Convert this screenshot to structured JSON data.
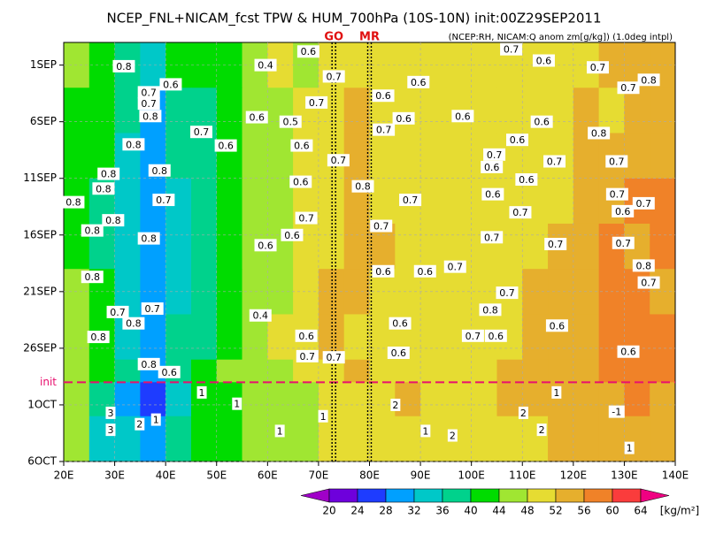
{
  "chart_data": {
    "type": "hovmoller",
    "title": "NCEP_FNL+NICAM_fcst TPW & HUM_700hPa (10S-10N) init:00Z29SEP2011",
    "subtitle": "(NCEP:RH, NICAM:Q anom zm[g/kg]) (1.0deg intpl)",
    "xlim": [
      20,
      140
    ],
    "xticks": [
      {
        "value": 20,
        "label": "20E"
      },
      {
        "value": 30,
        "label": "30E"
      },
      {
        "value": 40,
        "label": "40E"
      },
      {
        "value": 50,
        "label": "50E"
      },
      {
        "value": 60,
        "label": "60E"
      },
      {
        "value": 70,
        "label": "70E"
      },
      {
        "value": 80,
        "label": "80E"
      },
      {
        "value": 90,
        "label": "90E"
      },
      {
        "value": 100,
        "label": "100E"
      },
      {
        "value": 110,
        "label": "110E"
      },
      {
        "value": 120,
        "label": "120E"
      },
      {
        "value": 130,
        "label": "130E"
      },
      {
        "value": 140,
        "label": "140E"
      }
    ],
    "ylim": [
      36,
      -1
    ],
    "yticks": [
      {
        "value": 1,
        "label": "1SEP"
      },
      {
        "value": 6,
        "label": "6SEP"
      },
      {
        "value": 11,
        "label": "11SEP"
      },
      {
        "value": 16,
        "label": "16SEP"
      },
      {
        "value": 21,
        "label": "21SEP"
      },
      {
        "value": 26,
        "label": "26SEP"
      },
      {
        "value": 31,
        "label": "1OCT"
      },
      {
        "value": 36,
        "label": "6OCT"
      }
    ],
    "init_line": {
      "label": "init",
      "value": 29,
      "color": "#e8106e"
    },
    "markers": [
      {
        "label": "GO",
        "lon": 73,
        "color": "#e01010"
      },
      {
        "label": "MR",
        "lon": 80,
        "color": "#e01010"
      }
    ],
    "colorbar": {
      "levels": [
        20,
        24,
        28,
        32,
        36,
        40,
        44,
        48,
        52,
        56,
        60,
        64
      ],
      "colors": [
        "#a000c8",
        "#6e00dc",
        "#1e3cff",
        "#00a0ff",
        "#00c8c8",
        "#00d28c",
        "#00dc00",
        "#a0e632",
        "#e6dc32",
        "#e6af2d",
        "#f08228",
        "#fa3c3c",
        "#f00082"
      ],
      "unit": "[kg/m²]"
    },
    "field": {
      "x_edges": [
        20,
        25,
        30,
        35,
        40,
        45,
        50,
        55,
        60,
        65,
        70,
        75,
        80,
        85,
        90,
        95,
        100,
        105,
        110,
        115,
        120,
        125,
        130,
        135,
        140
      ],
      "y_edges": [
        -1,
        3,
        7,
        11,
        15,
        19,
        23,
        27,
        29,
        32,
        36
      ],
      "values": [
        [
          45,
          41,
          37,
          33,
          40,
          42,
          43,
          46,
          49,
          47,
          50,
          50,
          50,
          48,
          50,
          49,
          49,
          50,
          48,
          50,
          51,
          52,
          53,
          54
        ],
        [
          42,
          40,
          36,
          30,
          37,
          39,
          41,
          45,
          47,
          49,
          50,
          52,
          50,
          51,
          50,
          50,
          48,
          49,
          48,
          51,
          52,
          50,
          52,
          54
        ],
        [
          43,
          40,
          35,
          29,
          36,
          38,
          42,
          44,
          46,
          49,
          51,
          52,
          50,
          49,
          50,
          51,
          49,
          50,
          50,
          50,
          52,
          53,
          54,
          55
        ],
        [
          40,
          38,
          34,
          30,
          35,
          37,
          40,
          44,
          47,
          48,
          50,
          52,
          51,
          50,
          50,
          49,
          48,
          50,
          51,
          51,
          53,
          54,
          56,
          57
        ],
        [
          42,
          38,
          33,
          29,
          34,
          36,
          41,
          45,
          47,
          50,
          51,
          52,
          52,
          50,
          49,
          50,
          50,
          51,
          51,
          52,
          54,
          56,
          55,
          56
        ],
        [
          44,
          40,
          34,
          30,
          35,
          37,
          41,
          45,
          47,
          50,
          52,
          52,
          50,
          51,
          50,
          48,
          48,
          50,
          52,
          53,
          55,
          57,
          56,
          55
        ],
        [
          46,
          42,
          35,
          30,
          36,
          39,
          42,
          44,
          48,
          50,
          52,
          51,
          51,
          50,
          50,
          49,
          50,
          51,
          53,
          54,
          55,
          56,
          57,
          58
        ],
        [
          46,
          43,
          36,
          30,
          37,
          40,
          44,
          45,
          47,
          49,
          51,
          52,
          51,
          50,
          50,
          50,
          51,
          52,
          53,
          54,
          55,
          56,
          56,
          57
        ],
        [
          44,
          36,
          31,
          27,
          35,
          40,
          41,
          46,
          46,
          47,
          48,
          49,
          50,
          52,
          50,
          48,
          50,
          52,
          53,
          54,
          55,
          53,
          56,
          55
        ],
        [
          44,
          35,
          33,
          29,
          38,
          41,
          42,
          45,
          45,
          47,
          49,
          50,
          50,
          51,
          49,
          50,
          50,
          51,
          51,
          53,
          55,
          54,
          54,
          52
        ]
      ]
    },
    "contour_labels": [
      {
        "label": "0.8",
        "x": 31.8,
        "y": 1.1
      },
      {
        "label": "0.4",
        "x": 59.6,
        "y": 1
      },
      {
        "label": "0.6",
        "x": 68,
        "y": -0.2
      },
      {
        "label": "0.7",
        "x": 73,
        "y": 2
      },
      {
        "label": "0.7",
        "x": 107.8,
        "y": -0.4
      },
      {
        "label": "0.6",
        "x": 114.2,
        "y": 0.6
      },
      {
        "label": "0.7",
        "x": 124.8,
        "y": 1.2
      },
      {
        "label": "0.8",
        "x": 134.8,
        "y": 2.3
      },
      {
        "label": "0.7",
        "x": 130.8,
        "y": 3
      },
      {
        "label": "0.6",
        "x": 41,
        "y": 2.7
      },
      {
        "label": "0.7",
        "x": 36.7,
        "y": 3.4
      },
      {
        "label": "0.7",
        "x": 36.7,
        "y": 4.4
      },
      {
        "label": "0.8",
        "x": 37,
        "y": 5.5
      },
      {
        "label": "0.6",
        "x": 89.6,
        "y": 2.5
      },
      {
        "label": "0.6",
        "x": 82.7,
        "y": 3.7
      },
      {
        "label": "0.7",
        "x": 69.6,
        "y": 4.3
      },
      {
        "label": "0.6",
        "x": 57.9,
        "y": 5.6
      },
      {
        "label": "0.5",
        "x": 64.5,
        "y": 6
      },
      {
        "label": "0.6",
        "x": 86.7,
        "y": 5.7
      },
      {
        "label": "0.6",
        "x": 98.3,
        "y": 5.5
      },
      {
        "label": "0.6",
        "x": 113.8,
        "y": 6
      },
      {
        "label": "0.7",
        "x": 47,
        "y": 6.9
      },
      {
        "label": "0.8",
        "x": 125,
        "y": 7
      },
      {
        "label": "0.7",
        "x": 82.8,
        "y": 6.7
      },
      {
        "label": "0.6",
        "x": 51.8,
        "y": 8.1
      },
      {
        "label": "0.6",
        "x": 66.7,
        "y": 8.1
      },
      {
        "label": "0.6",
        "x": 109,
        "y": 7.6
      },
      {
        "label": "0.8",
        "x": 33.7,
        "y": 8
      },
      {
        "label": "0.7",
        "x": 104.5,
        "y": 8.9
      },
      {
        "label": "0.7",
        "x": 73.9,
        "y": 9.4
      },
      {
        "label": "0.7",
        "x": 116.3,
        "y": 9.5
      },
      {
        "label": "0.7",
        "x": 128.5,
        "y": 9.5
      },
      {
        "label": "0.8",
        "x": 28.8,
        "y": 10.6
      },
      {
        "label": "0.8",
        "x": 38.8,
        "y": 10.3
      },
      {
        "label": "0.6",
        "x": 104,
        "y": 10
      },
      {
        "label": "0.6",
        "x": 66.5,
        "y": 11.3
      },
      {
        "label": "0.6",
        "x": 110.8,
        "y": 11.1
      },
      {
        "label": "0.8",
        "x": 78.7,
        "y": 11.7
      },
      {
        "label": "0.8",
        "x": 27.8,
        "y": 11.9
      },
      {
        "label": "0.7",
        "x": 39.6,
        "y": 12.9
      },
      {
        "label": "0.6",
        "x": 104.2,
        "y": 12.4
      },
      {
        "label": "0.7",
        "x": 88,
        "y": 12.9
      },
      {
        "label": "0.7",
        "x": 128.6,
        "y": 12.4
      },
      {
        "label": "0.8",
        "x": 21.9,
        "y": 13.1
      },
      {
        "label": "0.7",
        "x": 133.8,
        "y": 13.2
      },
      {
        "label": "0.6",
        "x": 129.7,
        "y": 13.9
      },
      {
        "label": "0.8",
        "x": 29.7,
        "y": 14.7
      },
      {
        "label": "0.7",
        "x": 109.6,
        "y": 14
      },
      {
        "label": "0.7",
        "x": 67.6,
        "y": 14.5
      },
      {
        "label": "0.7",
        "x": 82.3,
        "y": 15.2
      },
      {
        "label": "0.8",
        "x": 25.6,
        "y": 15.6
      },
      {
        "label": "0.6",
        "x": 64.8,
        "y": 16
      },
      {
        "label": "0.8",
        "x": 36.7,
        "y": 16.3
      },
      {
        "label": "0.7",
        "x": 104,
        "y": 16.2
      },
      {
        "label": "0.6",
        "x": 59.6,
        "y": 16.9
      },
      {
        "label": "0.7",
        "x": 116.5,
        "y": 16.8
      },
      {
        "label": "0.7",
        "x": 129.8,
        "y": 16.7
      },
      {
        "label": "0.8",
        "x": 133.8,
        "y": 18.7
      },
      {
        "label": "0.7",
        "x": 134.8,
        "y": 20.2
      },
      {
        "label": "0.6",
        "x": 82.7,
        "y": 19.2
      },
      {
        "label": "0.6",
        "x": 90.9,
        "y": 19.2
      },
      {
        "label": "0.7",
        "x": 96.8,
        "y": 18.8
      },
      {
        "label": "0.8",
        "x": 25.6,
        "y": 19.7
      },
      {
        "label": "0.7",
        "x": 107,
        "y": 21.1
      },
      {
        "label": "0.7",
        "x": 30.6,
        "y": 22.8
      },
      {
        "label": "0.7",
        "x": 37.4,
        "y": 22.5
      },
      {
        "label": "0.8",
        "x": 103.7,
        "y": 22.6
      },
      {
        "label": "0.4",
        "x": 58.6,
        "y": 23.1
      },
      {
        "label": "0.8",
        "x": 33.7,
        "y": 23.8
      },
      {
        "label": "0.6",
        "x": 86,
        "y": 23.8
      },
      {
        "label": "0.6",
        "x": 116.8,
        "y": 24
      },
      {
        "label": "0.8",
        "x": 26.8,
        "y": 25
      },
      {
        "label": "0.6",
        "x": 67.6,
        "y": 24.9
      },
      {
        "label": "0.7",
        "x": 100.3,
        "y": 24.9
      },
      {
        "label": "0.6",
        "x": 104.8,
        "y": 24.9
      },
      {
        "label": "0.6",
        "x": 130.8,
        "y": 26.3
      },
      {
        "label": "0.6",
        "x": 85.7,
        "y": 26.4
      },
      {
        "label": "0.7",
        "x": 67.8,
        "y": 26.7
      },
      {
        "label": "0.7",
        "x": 73,
        "y": 26.8
      },
      {
        "label": "0.8",
        "x": 36.7,
        "y": 27.4
      },
      {
        "label": "0.6",
        "x": 40.7,
        "y": 28.1
      },
      {
        "label": "1",
        "x": 47.1,
        "y": 29.9
      },
      {
        "label": "1",
        "x": 116.7,
        "y": 29.9
      },
      {
        "label": "1",
        "x": 54,
        "y": 30.9
      },
      {
        "label": "2",
        "x": 85.1,
        "y": 31
      },
      {
        "label": "3",
        "x": 29.2,
        "y": 31.7
      },
      {
        "label": "1",
        "x": 70.9,
        "y": 32
      },
      {
        "label": "2",
        "x": 110.2,
        "y": 31.7
      },
      {
        "label": "-1",
        "x": 128.5,
        "y": 31.6
      },
      {
        "label": "2",
        "x": 34.9,
        "y": 32.7
      },
      {
        "label": "1",
        "x": 38.1,
        "y": 32.3
      },
      {
        "label": "3",
        "x": 29.2,
        "y": 33.2
      },
      {
        "label": "1",
        "x": 62.4,
        "y": 33.3
      },
      {
        "label": "1",
        "x": 91,
        "y": 33.3
      },
      {
        "label": "2",
        "x": 96.3,
        "y": 33.7
      },
      {
        "label": "2",
        "x": 113.8,
        "y": 33.2
      },
      {
        "label": "1",
        "x": 131,
        "y": 34.8
      }
    ]
  }
}
